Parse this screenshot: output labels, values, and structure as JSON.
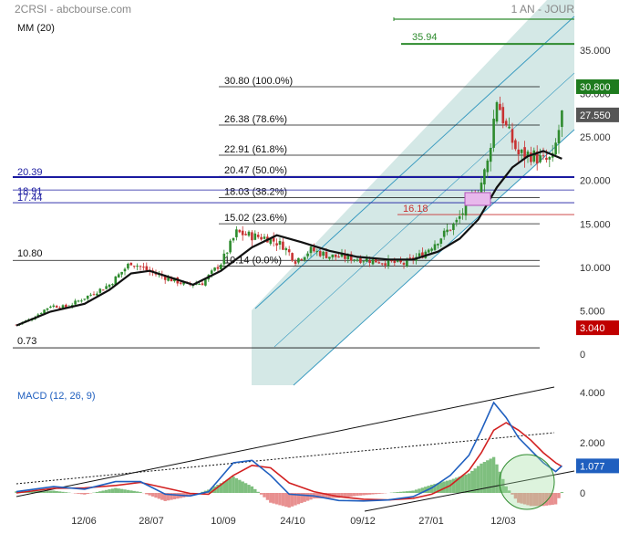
{
  "header": {
    "ticker_source": "2CRSI - abcbourse.com",
    "period": "1 AN - JOUR",
    "ma_label": "MM (20)"
  },
  "macd_label": "MACD (12, 26, 9)",
  "x_labels": [
    "12/06",
    "28/07",
    "10/09",
    "24/10",
    "09/12",
    "27/01",
    "12/03"
  ],
  "price_axis_ticks": [
    "35.000",
    "30.000",
    "25.000",
    "20.000",
    "15.000",
    "10.000",
    "5.000",
    "0"
  ],
  "macd_axis_ticks": [
    "4.000",
    "2.000",
    "0"
  ],
  "fibonacci": [
    {
      "label": "30.80  (100.0%)",
      "value": 30.8
    },
    {
      "label": "26.38  (78.6%)",
      "value": 26.38
    },
    {
      "label": "22.91  (61.8%)",
      "value": 22.91
    },
    {
      "label": "20.47  (50.0%)",
      "value": 20.47
    },
    {
      "label": "18.03  (38.2%)",
      "value": 18.03
    },
    {
      "label": "15.02  (23.6%)",
      "value": 15.02
    },
    {
      "label": "10.14  (0.0%)",
      "value": 10.14
    }
  ],
  "levels": {
    "blue": [
      {
        "label": "20.39",
        "value": 20.39
      },
      {
        "label": "18.91",
        "value": 18.91
      },
      {
        "label": "17.44",
        "value": 17.44
      }
    ],
    "black": [
      {
        "label": "10.80",
        "value": 10.8
      },
      {
        "label": "0.73",
        "value": 0.73
      }
    ],
    "green_target": {
      "label": "35.94",
      "value": 35.94
    },
    "red_gap": {
      "label": "16.18",
      "value": 16.18
    }
  },
  "price_badges": {
    "high": {
      "label": "30.800",
      "value": 30.8,
      "color": "#1e7b1e"
    },
    "last": {
      "label": "27.550",
      "value": 27.55,
      "color": "#555555"
    },
    "low": {
      "label": "3.040",
      "value": 3.04,
      "color": "#c00000"
    }
  },
  "macd_badge": {
    "label": "1.077",
    "value": 1.077,
    "color": "#1f5fbf"
  },
  "colors": {
    "channel_fill": "#cfe6e3",
    "channel_line": "#3a9bc0",
    "up_candle": "#2e8b2e",
    "down_candle": "#c83232",
    "ma": "#111111",
    "macd_line": "#1f5fbf",
    "signal_line": "#d22020",
    "hist_pos": "#7fbf7f",
    "hist_neg": "#e89090",
    "blue_level": "#1a1aa0",
    "target": "#2e8b2e",
    "gap": "#c83232"
  },
  "chart_data": {
    "type": "candlestick",
    "title": "2CRSI",
    "period": "1 AN - JOUR",
    "y_range": [
      0,
      38
    ],
    "x_ticks": [
      "12/06",
      "28/07",
      "10/09",
      "24/10",
      "09/12",
      "27/01",
      "12/03"
    ],
    "close_approx": [
      {
        "t": 0,
        "v": 3.4
      },
      {
        "t": 5,
        "v": 4.1
      },
      {
        "t": 11,
        "v": 5.6
      },
      {
        "t": 16,
        "v": 5.4
      },
      {
        "t": 22,
        "v": 6.5
      },
      {
        "t": 30,
        "v": 8.0
      },
      {
        "t": 37,
        "v": 10.6
      },
      {
        "t": 43,
        "v": 9.5
      },
      {
        "t": 50,
        "v": 8.6
      },
      {
        "t": 55,
        "v": 8.0
      },
      {
        "t": 60,
        "v": 8.2
      },
      {
        "t": 66,
        "v": 10.5
      },
      {
        "t": 71,
        "v": 14.0
      },
      {
        "t": 76,
        "v": 13.6
      },
      {
        "t": 81,
        "v": 13.4
      },
      {
        "t": 86,
        "v": 12.5
      },
      {
        "t": 90,
        "v": 10.8
      },
      {
        "t": 95,
        "v": 12.0
      },
      {
        "t": 101,
        "v": 11.3
      },
      {
        "t": 110,
        "v": 11.0
      },
      {
        "t": 117,
        "v": 10.7
      },
      {
        "t": 125,
        "v": 10.4
      },
      {
        "t": 131,
        "v": 11.5
      },
      {
        "t": 137,
        "v": 13.5
      },
      {
        "t": 142,
        "v": 15.2
      },
      {
        "t": 146,
        "v": 17.5
      },
      {
        "t": 149,
        "v": 18.7
      },
      {
        "t": 152,
        "v": 22.0
      },
      {
        "t": 155,
        "v": 29.5
      },
      {
        "t": 158,
        "v": 26.0
      },
      {
        "t": 162,
        "v": 23.0
      },
      {
        "t": 166,
        "v": 23.0
      },
      {
        "t": 170,
        "v": 22.2
      },
      {
        "t": 173,
        "v": 22.4
      },
      {
        "t": 176,
        "v": 27.55
      }
    ],
    "ma20_approx": [
      {
        "t": 0,
        "v": 3.3
      },
      {
        "t": 11,
        "v": 4.9
      },
      {
        "t": 22,
        "v": 5.8
      },
      {
        "t": 30,
        "v": 7.4
      },
      {
        "t": 37,
        "v": 9.3
      },
      {
        "t": 43,
        "v": 9.6
      },
      {
        "t": 50,
        "v": 8.8
      },
      {
        "t": 57,
        "v": 8.0
      },
      {
        "t": 66,
        "v": 9.6
      },
      {
        "t": 76,
        "v": 12.3
      },
      {
        "t": 84,
        "v": 13.7
      },
      {
        "t": 92,
        "v": 12.9
      },
      {
        "t": 101,
        "v": 11.9
      },
      {
        "t": 110,
        "v": 11.2
      },
      {
        "t": 120,
        "v": 10.9
      },
      {
        "t": 128,
        "v": 10.9
      },
      {
        "t": 136,
        "v": 11.8
      },
      {
        "t": 143,
        "v": 13.3
      },
      {
        "t": 149,
        "v": 15.5
      },
      {
        "t": 155,
        "v": 19.2
      },
      {
        "t": 160,
        "v": 21.5
      },
      {
        "t": 165,
        "v": 22.8
      },
      {
        "t": 170,
        "v": 23.4
      },
      {
        "t": 176,
        "v": 22.5
      }
    ],
    "macd": {
      "y_range": [
        -0.6,
        4.2
      ],
      "macd_line": [
        {
          "t": 0,
          "v": 0.05
        },
        {
          "t": 12,
          "v": 0.25
        },
        {
          "t": 22,
          "v": 0.15
        },
        {
          "t": 32,
          "v": 0.45
        },
        {
          "t": 40,
          "v": 0.45
        },
        {
          "t": 48,
          "v": -0.05
        },
        {
          "t": 56,
          "v": -0.12
        },
        {
          "t": 62,
          "v": 0.05
        },
        {
          "t": 70,
          "v": 1.2
        },
        {
          "t": 76,
          "v": 1.3
        },
        {
          "t": 82,
          "v": 0.7
        },
        {
          "t": 88,
          "v": -0.05
        },
        {
          "t": 96,
          "v": -0.12
        },
        {
          "t": 104,
          "v": -0.3
        },
        {
          "t": 112,
          "v": -0.32
        },
        {
          "t": 120,
          "v": -0.28
        },
        {
          "t": 128,
          "v": -0.15
        },
        {
          "t": 134,
          "v": 0.2
        },
        {
          "t": 140,
          "v": 0.7
        },
        {
          "t": 146,
          "v": 1.5
        },
        {
          "t": 150,
          "v": 2.5
        },
        {
          "t": 154,
          "v": 3.6
        },
        {
          "t": 158,
          "v": 3.0
        },
        {
          "t": 162,
          "v": 2.2
        },
        {
          "t": 166,
          "v": 1.7
        },
        {
          "t": 170,
          "v": 1.2
        },
        {
          "t": 174,
          "v": 0.85
        },
        {
          "t": 176,
          "v": 1.077
        }
      ],
      "signal_line": [
        {
          "t": 0,
          "v": 0.0
        },
        {
          "t": 12,
          "v": 0.18
        },
        {
          "t": 22,
          "v": 0.2
        },
        {
          "t": 32,
          "v": 0.3
        },
        {
          "t": 40,
          "v": 0.42
        },
        {
          "t": 48,
          "v": 0.2
        },
        {
          "t": 56,
          "v": -0.02
        },
        {
          "t": 62,
          "v": -0.05
        },
        {
          "t": 70,
          "v": 0.7
        },
        {
          "t": 76,
          "v": 1.1
        },
        {
          "t": 82,
          "v": 1.0
        },
        {
          "t": 88,
          "v": 0.4
        },
        {
          "t": 96,
          "v": 0.05
        },
        {
          "t": 104,
          "v": -0.15
        },
        {
          "t": 112,
          "v": -0.25
        },
        {
          "t": 120,
          "v": -0.28
        },
        {
          "t": 128,
          "v": -0.22
        },
        {
          "t": 134,
          "v": -0.05
        },
        {
          "t": 140,
          "v": 0.3
        },
        {
          "t": 146,
          "v": 0.9
        },
        {
          "t": 150,
          "v": 1.6
        },
        {
          "t": 154,
          "v": 2.5
        },
        {
          "t": 158,
          "v": 2.8
        },
        {
          "t": 162,
          "v": 2.5
        },
        {
          "t": 166,
          "v": 2.1
        },
        {
          "t": 170,
          "v": 1.6
        },
        {
          "t": 174,
          "v": 1.2
        },
        {
          "t": 176,
          "v": 1.05
        }
      ]
    }
  }
}
